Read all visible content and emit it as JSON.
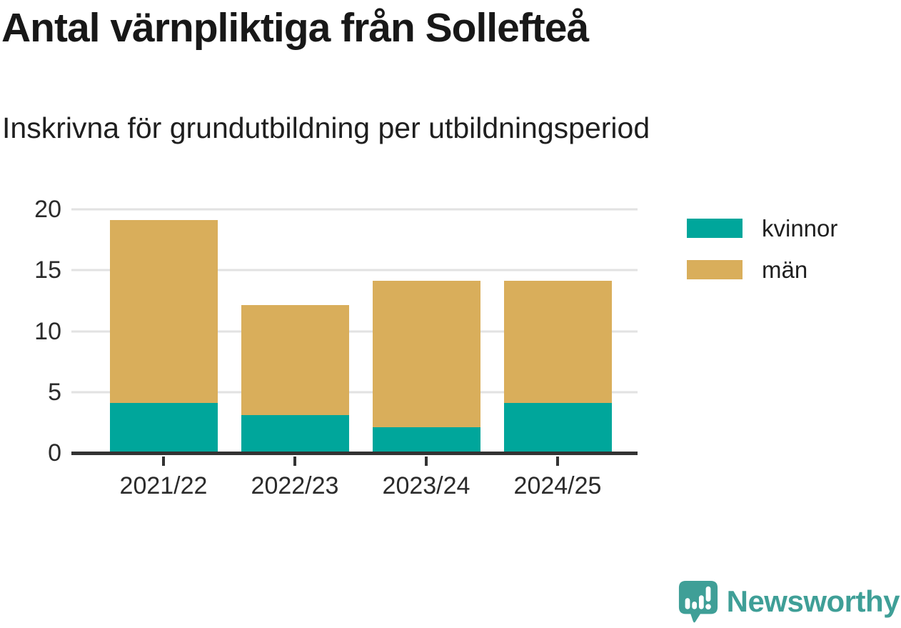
{
  "title": "Antal värnpliktiga från Sollefteå",
  "subtitle": "Inskrivna för grundutbildning per utbildningsperiod",
  "chart_data": {
    "type": "bar",
    "stacked": true,
    "title": "Antal värnpliktiga från Sollefteå",
    "subtitle": "Inskrivna för grundutbildning per utbildningsperiod",
    "categories": [
      "2021/22",
      "2022/23",
      "2023/24",
      "2024/25"
    ],
    "series": [
      {
        "name": "kvinnor",
        "color": "#00a69b",
        "values": [
          4,
          3,
          2,
          4
        ]
      },
      {
        "name": "män",
        "color": "#d9ae5b",
        "values": [
          15,
          9,
          12,
          10
        ]
      }
    ],
    "totals": [
      19,
      12,
      14,
      14
    ],
    "xlabel": "",
    "ylabel": "",
    "ylim": [
      0,
      20
    ],
    "yticks": [
      0,
      5,
      10,
      15,
      20
    ],
    "grid": "horizontal",
    "legend_position": "right"
  },
  "axis": {
    "baseline_color": "#333333",
    "grid_color": "#e2e2e2",
    "tick_label_color": "#2b2b2b"
  },
  "logo": {
    "text": "Newsworthy",
    "color": "#3f9f97",
    "icon": "newsworthy-speech-bubble-bar-chart-icon"
  }
}
